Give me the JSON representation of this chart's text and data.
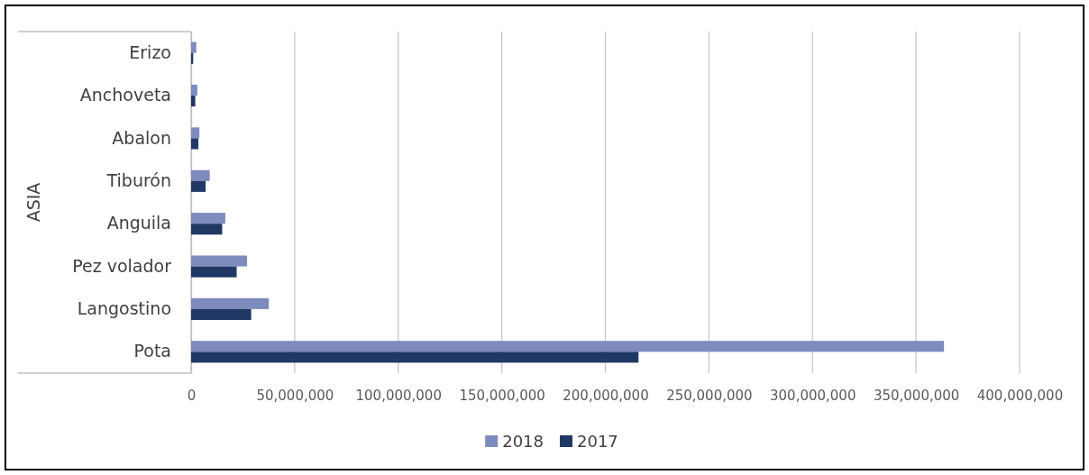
{
  "chart_data": {
    "type": "bar",
    "orientation": "horizontal",
    "ylabel": "ASIA",
    "categories": [
      "Erizo",
      "Anchoveta",
      "Abalon",
      "Tiburón",
      "Anguila",
      "Pez volador",
      "Langostino",
      "Pota"
    ],
    "series": [
      {
        "name": "2018",
        "color": "#7e8bbd",
        "values": [
          2500000,
          3000000,
          4000000,
          9000000,
          16500000,
          27000000,
          37500000,
          363500000
        ]
      },
      {
        "name": "2017",
        "color": "#203864",
        "values": [
          1000000,
          2000000,
          3500000,
          7000000,
          15000000,
          22000000,
          29000000,
          216000000
        ]
      }
    ],
    "xlim": [
      0,
      400000000
    ],
    "xticks": [
      0,
      {
        "value": 50000000,
        "label": "50,000,000"
      },
      {
        "value": 100000000,
        "label": "100,000,000"
      },
      {
        "value": 150000000,
        "label": "150,000,000"
      },
      {
        "value": 200000000,
        "label": "200,000,000"
      },
      {
        "value": 250000000,
        "label": "250,000,000"
      },
      {
        "value": 300000000,
        "label": "300,000,000"
      },
      {
        "value": 350000000,
        "label": "350,000,000"
      },
      {
        "value": 400000000,
        "label": "400,000,000"
      }
    ],
    "grid": "x",
    "legend": "bottom"
  }
}
